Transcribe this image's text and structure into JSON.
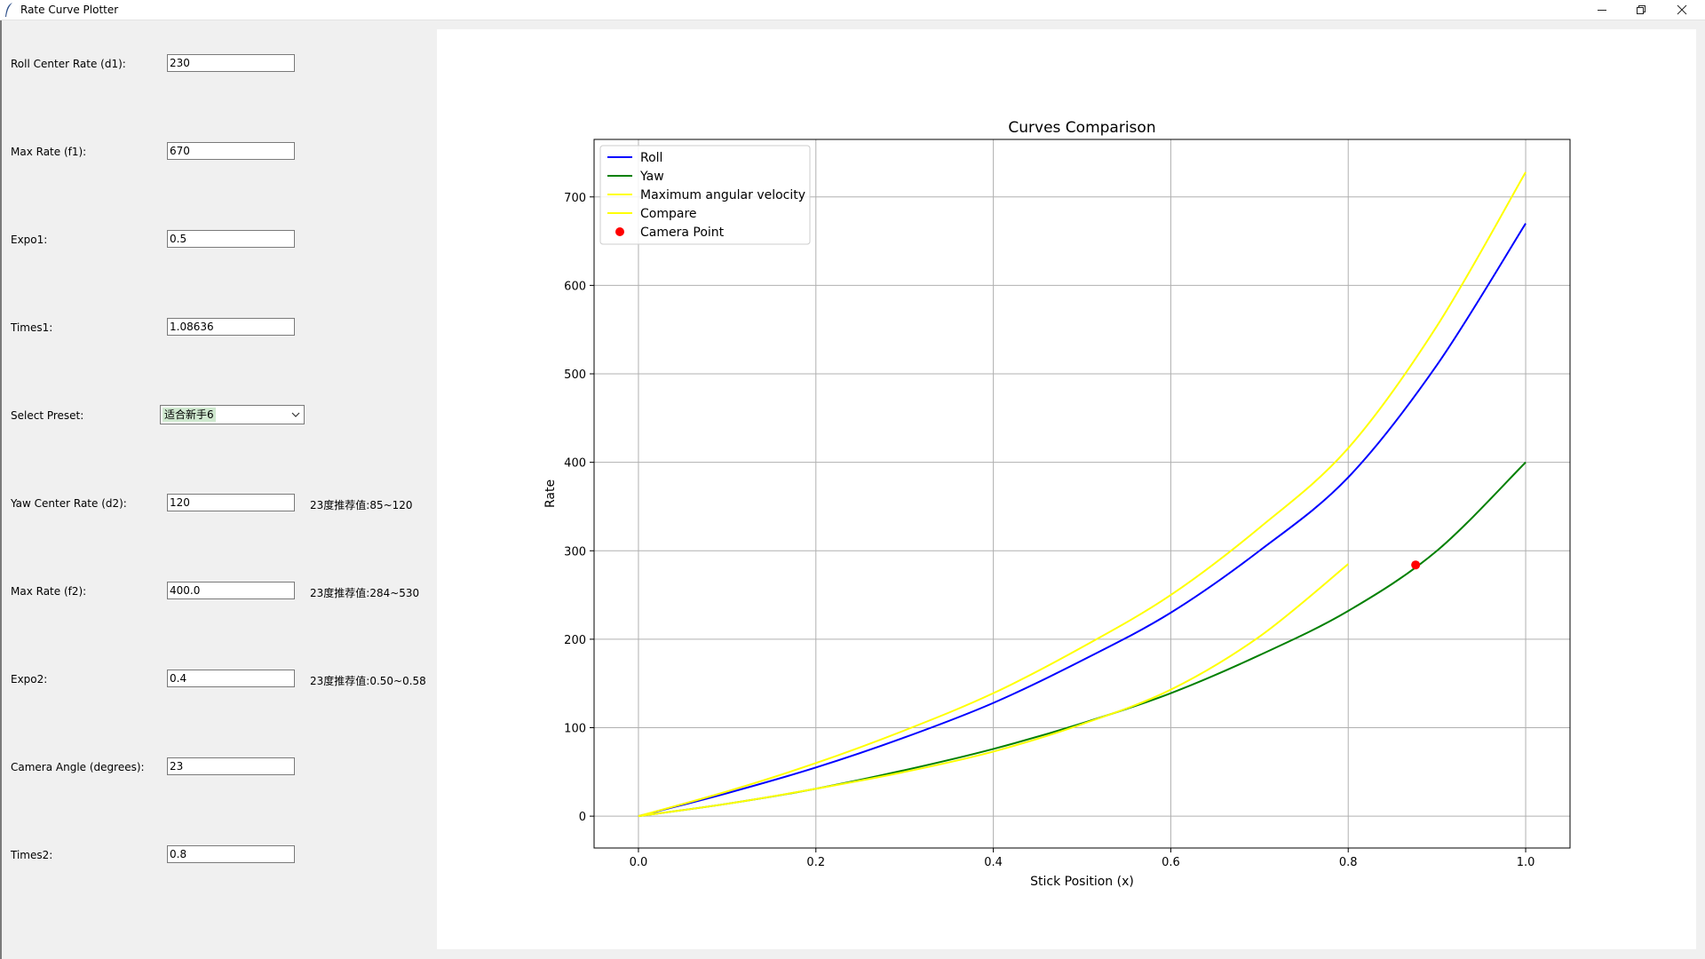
{
  "window": {
    "title": "Rate Curve Plotter",
    "icon": "feather-icon",
    "controls": [
      "minimize-icon",
      "restore-icon",
      "close-icon"
    ]
  },
  "form": {
    "roll_center_rate": {
      "label": "Roll Center Rate (d1):",
      "value": "230"
    },
    "max_rate_f1": {
      "label": "Max Rate (f1):",
      "value": "670"
    },
    "expo1": {
      "label": "Expo1:",
      "value": "0.5"
    },
    "times1": {
      "label": "Times1:",
      "value": "1.08636"
    },
    "preset": {
      "label": "Select Preset:",
      "value": "适合新手6"
    },
    "yaw_center_rate": {
      "label": "Yaw Center Rate (d2):",
      "value": "120",
      "hint": "23度推荐值:85~120"
    },
    "max_rate_f2": {
      "label": "Max Rate (f2):",
      "value": "400.0",
      "hint": "23度推荐值:284~530"
    },
    "expo2": {
      "label": "Expo2:",
      "value": "0.4",
      "hint": "23度推荐值:0.50~0.58"
    },
    "camera_angle": {
      "label": "Camera Angle (degrees):",
      "value": "23"
    },
    "times2": {
      "label": "Times2:",
      "value": "0.8"
    }
  },
  "chart_data": {
    "type": "line",
    "title": "Curves Comparison",
    "xlabel": "Stick Position (x)",
    "ylabel": "Rate",
    "xlim": [
      -0.05,
      1.05
    ],
    "ylim": [
      -36,
      765
    ],
    "xticks": [
      "0.0",
      "0.2",
      "0.4",
      "0.6",
      "0.8",
      "1.0"
    ],
    "yticks": [
      "0",
      "100",
      "200",
      "300",
      "400",
      "500",
      "600",
      "700"
    ],
    "grid": true,
    "legend_position": "top-left",
    "series": [
      {
        "name": "Roll",
        "color": "#0000ff",
        "x": [
          0,
          0.1,
          0.2,
          0.3,
          0.4,
          0.5,
          0.6,
          0.7,
          0.8,
          0.9,
          1.0
        ],
        "y": [
          0,
          26,
          55,
          89,
          128,
          176,
          230,
          300,
          383,
          510,
          670
        ]
      },
      {
        "name": "Yaw",
        "color": "#008000",
        "x": [
          0,
          0.1,
          0.2,
          0.3,
          0.4,
          0.5,
          0.6,
          0.7,
          0.8,
          0.9,
          1.0
        ],
        "y": [
          0,
          14,
          31,
          52,
          76,
          105,
          139,
          182,
          232,
          300,
          400
        ]
      },
      {
        "name": "Maximum angular velocity",
        "color": "#ffff00",
        "x": [
          0,
          0.1,
          0.2,
          0.3,
          0.4,
          0.5,
          0.6,
          0.7,
          0.8,
          0.9,
          1.0
        ],
        "y": [
          0,
          28,
          60,
          97,
          139,
          191,
          250,
          326,
          416,
          554,
          728
        ]
      },
      {
        "name": "Compare",
        "color": "#ffff00",
        "x": [
          0,
          0.1,
          0.2,
          0.3,
          0.4,
          0.5,
          0.6,
          0.7,
          0.8
        ],
        "y": [
          0,
          14,
          31,
          50,
          73,
          104,
          143,
          203,
          285
        ]
      }
    ],
    "points": [
      {
        "name": "Camera Point",
        "color": "#ff0000",
        "x": 0.876,
        "y": 284
      }
    ]
  }
}
